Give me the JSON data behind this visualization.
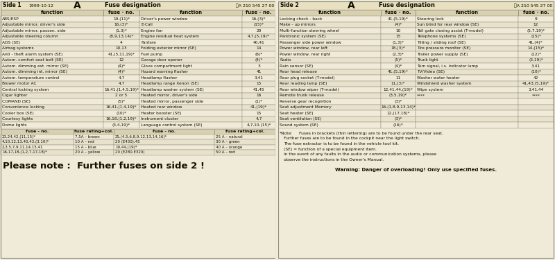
{
  "bg_color": "#f0ead8",
  "hdr_bg": "#e8e0c0",
  "col_hdr_bg": "#d8d0b0",
  "border_color": "#888877",
  "text_color": "#111100",
  "row_alt_color": "#e8e2cc",
  "row_base_color": "#f0ead8",
  "side1_title": "Side 1",
  "side1_date": "1999-10-12",
  "side2_title": "Side 2",
  "fuse_label": "A   Fuse designation",
  "part_no": "ⓉA 210 545 27 00",
  "col_headers": [
    "function",
    "fuse - no.",
    "function",
    "fuse - no."
  ],
  "side1_rows": [
    [
      "ABS/ESP",
      "19,(11)*",
      "Driver's power window",
      "16,(3)*"
    ],
    [
      "Adjustable mirror, driver's side",
      "16,(3)*",
      "E-Call",
      "(15)*"
    ],
    [
      "Adjustable mirror, passen. side",
      "(1,3)*",
      "Engine fan",
      "20"
    ],
    [
      "Adjustable steering column",
      "(8,9,13,14)*",
      "Engine residual heat system",
      "4,7,(5,19)*"
    ],
    [
      "ADS (SE)",
      "4",
      "Fanfare",
      "40,41"
    ],
    [
      "Airbag systems",
      "10,13",
      "Folding exterior mirror (SE)",
      "14"
    ],
    [
      "Anti - theft alarm system (SE)",
      "41,(5,11,19)*",
      "Fuel pump",
      "(6)*"
    ],
    [
      "Autom. comfort seat belt (SE)",
      "12",
      "Garage door opener",
      "(4)*"
    ],
    [
      "Autom. dimming ext. mirror (SE)",
      "(4)*",
      "Glove compartment light",
      "3"
    ],
    [
      "Autom. dimming int. mirror (SE)",
      "(4)*",
      "Hazard warning flasher",
      "41"
    ],
    [
      "Autom. temperature control",
      "4,7",
      "Headlamp flasher",
      "3,41"
    ],
    [
      "Blower motor AC",
      "4,7",
      "Headlamp range Xenon (SE)",
      "15"
    ],
    [
      "Central locking system",
      "16,41,(1,4,5,19)*",
      "Headlamp washer system (SE)",
      "41,45"
    ],
    [
      "Cigar lighter",
      "2 or 5",
      "Heated mirror, driver's side",
      "16"
    ],
    [
      "COMAND (SE)",
      "(5)*",
      "Heated mirror, passenger side",
      "(1)*"
    ],
    [
      "Convenience locking",
      "16,41,(1,4,19)*",
      "Heated rear window",
      "41,(19)*"
    ],
    [
      "Cooler box (SE)",
      "(10)*",
      "Heater booster (SE)",
      "15"
    ],
    [
      "Courtesy lights",
      "16,18,(1,2,19)*",
      "Instrument cluster",
      "4,7"
    ],
    [
      "Dome lights",
      "(3,4,19)*",
      "Language control system (SE)",
      "4,7,10,(15)*"
    ]
  ],
  "side2_rows": [
    [
      "Locking check - back",
      "41,(5,19)*",
      "Steering lock",
      "9"
    ],
    [
      "Make - up mirrors",
      "(4)*",
      "Sun blind for rear window (SE)",
      "12"
    ],
    [
      "Multi-function steering wheel",
      "10",
      "Tail gate closing assist (T-model)",
      "(5,7,19)*"
    ],
    [
      "Parktronic system (SE)",
      "15",
      "Telephone systems (SE)",
      "(15)*"
    ],
    [
      "Passenger side power window",
      "(1,3)*",
      "Tilting / sliding roof (SE)",
      "41,(4)*"
    ],
    [
      "Power window, rear left",
      "18,(3)*",
      "Tire pressure monitor (SE)",
      "14,(15)*"
    ],
    [
      "Power window, rear right",
      "(2,3)*",
      "Trailer power supply (SE)",
      "(12)*"
    ],
    [
      "Radio",
      "(5)*",
      "Trunk light",
      "(3,19)*"
    ],
    [
      "Rain sensor (SE)",
      "(4)*",
      "Turn signal, i.s. indicator lamp",
      "3,41"
    ],
    [
      "Rear head release",
      "41,(5,19)*",
      "TV/Video (SE)",
      "(10)*"
    ],
    [
      "Rear plug socket (T-model)",
      "11",
      "Washer water heater",
      "42"
    ],
    [
      "Rear reading lamp (SE)",
      "11,(3)*",
      "Windshield washer system",
      "41,43,(5,19)*"
    ],
    [
      "Rear window wiper (T-model)",
      "12,41,44,(19)*",
      "Wipe system",
      "3,41,44"
    ],
    [
      "Remote trunk release",
      "(3,5,19)*",
      "****",
      "****"
    ],
    [
      "Reverse gear recognition",
      "(3)*",
      "",
      ""
    ],
    [
      "Seat adjustment Memory",
      "16,(1,8,9,13,14)*",
      "",
      ""
    ],
    [
      "Seat heater (SE)",
      "12,(17,18)*",
      "",
      ""
    ],
    [
      "Seat ventilation (SE)",
      "(3)*",
      "",
      ""
    ],
    [
      "Sound system (SE)",
      "(16)*",
      "",
      ""
    ]
  ],
  "fuse_table_headers": [
    "fuse - no.",
    "fuse rating+col.",
    "fuse - no.",
    "fuse rating+col."
  ],
  "fuse_table_rows": [
    [
      "23,24,42,(11,15)*",
      "7,5A – brown",
      "25,(4,5,6,8,9,12,13,14,16)*",
      "25 A – natural"
    ],
    [
      "4,10,12,13,40,43,(3,10)*",
      "10 A – red",
      "20 (E430),45",
      "30 A – green"
    ],
    [
      "2,3,5,7,9,11,14,15,41",
      "15 A – blue",
      "19,44,(19)*",
      "40 A – orange"
    ],
    [
      "16,17,18,(1,2,7,17,18)*",
      "20 A – yellow",
      "20 (E280,E320)",
      "50 A – red"
    ]
  ],
  "please_note": "Please note :  Further fuses on side 2 !",
  "note_label": "*Note:",
  "note_lines": [
    "Fuses in brackets (thin lettering) are to be found under the rear seat.",
    "Further fuses are to be found in the cockpit near the light switch.",
    "The fuse extractor is to be found in the vehicle tool kit.",
    "(SE) = function of a special equipment item.",
    "In the event of any faults in the audio or communication systems, please",
    "observe the instructions in the Owner's Manual."
  ],
  "warning": "Warning: Danger of overloading! Only use specified fuses."
}
